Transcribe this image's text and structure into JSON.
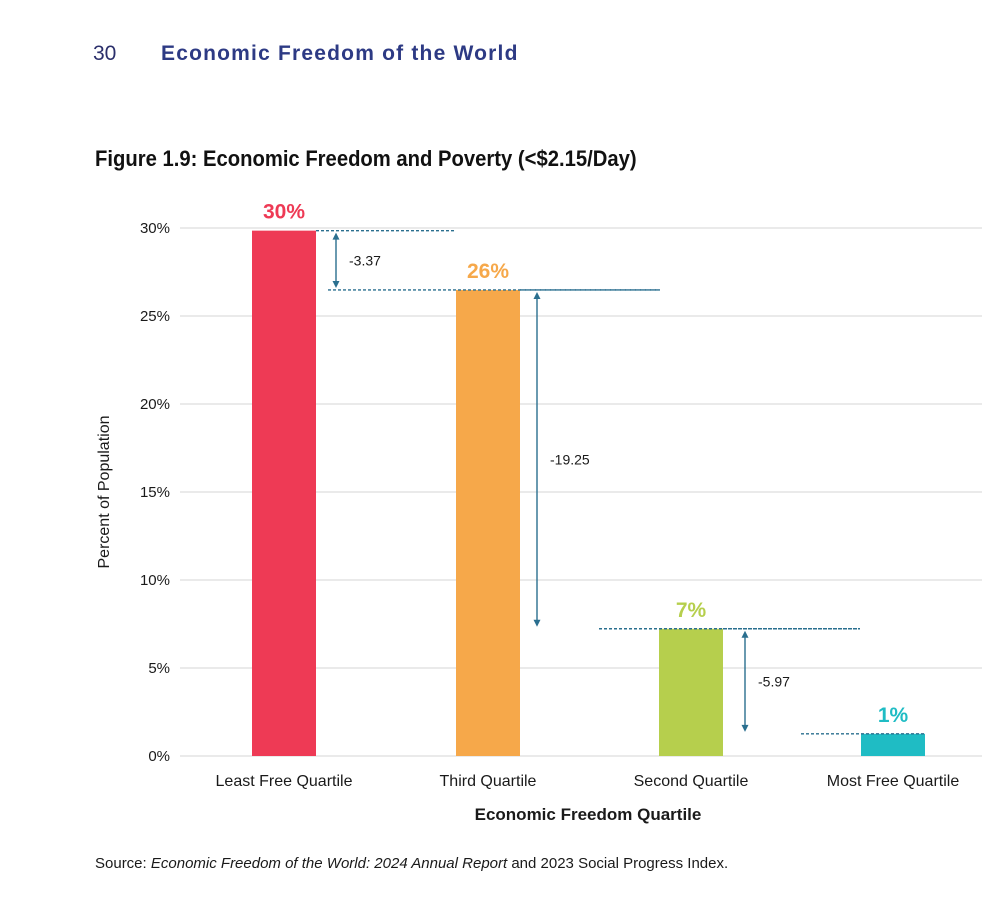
{
  "header": {
    "page_number": "30",
    "running_title": "Economic Freedom of the World"
  },
  "figure": {
    "title": "Figure 1.9: Economic Freedom and Poverty (<$2.15/Day)"
  },
  "chart_data": {
    "type": "bar",
    "title": "Figure 1.9: Economic Freedom and Poverty (<$2.15/Day)",
    "xlabel": "Economic Freedom Quartile",
    "ylabel": "Percent of Population",
    "ylim": [
      0,
      30
    ],
    "yticks": [
      0,
      5,
      10,
      15,
      20,
      25,
      30
    ],
    "ytick_labels": [
      "0%",
      "5%",
      "10%",
      "15%",
      "20%",
      "25%",
      "30%"
    ],
    "grid": true,
    "categories": [
      "Least Free Quartile",
      "Third Quartile",
      "Second Quartile",
      "Most Free Quartile"
    ],
    "values": [
      29.85,
      26.48,
      7.23,
      1.26
    ],
    "value_labels": [
      "30%",
      "26%",
      "7%",
      "1%"
    ],
    "colors": [
      "#ee3a55",
      "#f6a84a",
      "#b6cf4d",
      "#1fbcc4"
    ],
    "differences": [
      {
        "from": 0,
        "to": 1,
        "label": "-3.37"
      },
      {
        "from": 1,
        "to": 2,
        "label": "-19.25"
      },
      {
        "from": 2,
        "to": 3,
        "label": "-5.97"
      }
    ],
    "annotation_color": "#2a6f8f"
  },
  "source": {
    "prefix": "Source: ",
    "title": "Economic Freedom of the World: 2024 Annual Report",
    "suffix": " and 2023 Social Progress Index."
  }
}
